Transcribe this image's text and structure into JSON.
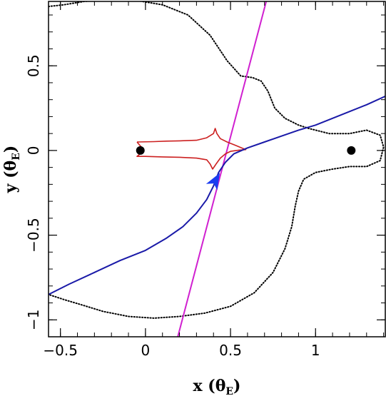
{
  "chart_data": {
    "type": "line",
    "xlim": [
      -0.57,
      1.41
    ],
    "ylim": [
      -1.1,
      0.88
    ],
    "x_ticks": [
      {
        "value": -0.5,
        "label": "−0.5"
      },
      {
        "value": 0,
        "label": "0"
      },
      {
        "value": 0.5,
        "label": "0.5"
      },
      {
        "value": 1,
        "label": "1"
      }
    ],
    "y_ticks": [
      {
        "value": -1,
        "label": "−1"
      },
      {
        "value": -0.5,
        "label": "−0.5"
      },
      {
        "value": 0,
        "label": "0"
      },
      {
        "value": 0.5,
        "label": "0.5"
      }
    ],
    "xlabel": {
      "main": "x (θ",
      "sub": "E",
      "close": ")"
    },
    "ylabel": {
      "main": "y (θ",
      "sub": "E",
      "close": ")"
    },
    "grid": false,
    "colors": {
      "critical_curve": "#000000",
      "caustic": "#cc2020",
      "source_trajectory": "#1a1aa8",
      "magenta_line": "#d020d0",
      "arrow": "#1a3cf0"
    },
    "lenses": [
      {
        "x": -0.03,
        "y": 0.0
      },
      {
        "x": 1.21,
        "y": 0.0
      }
    ],
    "critical_curve": [
      [
        -0.57,
        0.85
      ],
      [
        -0.48,
        0.86
      ],
      [
        -0.36,
        0.88
      ],
      [
        -0.2,
        0.89
      ],
      [
        -0.05,
        0.885
      ],
      [
        0.1,
        0.86
      ],
      [
        0.25,
        0.8
      ],
      [
        0.38,
        0.68
      ],
      [
        0.48,
        0.53
      ],
      [
        0.56,
        0.44
      ],
      [
        0.63,
        0.43
      ],
      [
        0.68,
        0.41
      ],
      [
        0.72,
        0.35
      ],
      [
        0.76,
        0.25
      ],
      [
        0.82,
        0.19
      ],
      [
        0.9,
        0.15
      ],
      [
        0.96,
        0.13
      ],
      [
        1.0,
        0.12
      ],
      [
        1.08,
        0.1
      ],
      [
        1.2,
        0.1
      ],
      [
        1.3,
        0.12
      ],
      [
        1.38,
        0.09
      ],
      [
        1.4,
        0.02
      ],
      [
        1.38,
        -0.06
      ],
      [
        1.3,
        -0.095
      ],
      [
        1.2,
        -0.095
      ],
      [
        1.1,
        -0.11
      ],
      [
        1.0,
        -0.13
      ],
      [
        0.93,
        -0.17
      ],
      [
        0.9,
        -0.24
      ],
      [
        0.88,
        -0.33
      ],
      [
        0.86,
        -0.45
      ],
      [
        0.82,
        -0.58
      ],
      [
        0.75,
        -0.72
      ],
      [
        0.64,
        -0.84
      ],
      [
        0.5,
        -0.92
      ],
      [
        0.35,
        -0.96
      ],
      [
        0.2,
        -0.98
      ],
      [
        0.05,
        -0.99
      ],
      [
        -0.1,
        -0.98
      ],
      [
        -0.25,
        -0.95
      ],
      [
        -0.38,
        -0.91
      ],
      [
        -0.48,
        -0.88
      ],
      [
        -0.57,
        -0.85
      ]
    ],
    "caustic": [
      [
        -0.05,
        0.05
      ],
      [
        0.05,
        0.052
      ],
      [
        0.12,
        0.055
      ],
      [
        0.2,
        0.057
      ],
      [
        0.3,
        0.06
      ],
      [
        0.36,
        0.075
      ],
      [
        0.4,
        0.1
      ],
      [
        0.41,
        0.13
      ],
      [
        0.42,
        0.1
      ],
      [
        0.44,
        0.07
      ],
      [
        0.48,
        0.05
      ],
      [
        0.53,
        0.03
      ],
      [
        0.59,
        0.005
      ],
      [
        0.55,
        0.002
      ],
      [
        0.5,
        -0.005
      ],
      [
        0.47,
        -0.02
      ],
      [
        0.44,
        -0.045
      ],
      [
        0.415,
        -0.08
      ],
      [
        0.395,
        -0.11
      ],
      [
        0.38,
        -0.08
      ],
      [
        0.36,
        -0.055
      ],
      [
        0.3,
        -0.045
      ],
      [
        0.2,
        -0.04
      ],
      [
        0.1,
        -0.038
      ],
      [
        0.0,
        -0.035
      ],
      [
        -0.05,
        -0.035
      ],
      [
        -0.02,
        -0.01
      ],
      [
        -0.015,
        0.0
      ],
      [
        -0.02,
        0.015
      ],
      [
        -0.05,
        0.05
      ]
    ],
    "source_trajectory": [
      [
        -0.57,
        -0.85
      ],
      [
        -0.45,
        -0.79
      ],
      [
        -0.3,
        -0.72
      ],
      [
        -0.15,
        -0.65
      ],
      [
        0.0,
        -0.59
      ],
      [
        0.12,
        -0.52
      ],
      [
        0.22,
        -0.45
      ],
      [
        0.3,
        -0.37
      ],
      [
        0.36,
        -0.29
      ],
      [
        0.4,
        -0.21
      ],
      [
        0.43,
        -0.13
      ],
      [
        0.47,
        -0.07
      ],
      [
        0.52,
        -0.02
      ],
      [
        0.6,
        0.015
      ],
      [
        0.7,
        0.05
      ],
      [
        0.8,
        0.085
      ],
      [
        0.9,
        0.12
      ],
      [
        1.0,
        0.15
      ],
      [
        1.1,
        0.19
      ],
      [
        1.2,
        0.23
      ],
      [
        1.3,
        0.27
      ],
      [
        1.41,
        0.32
      ]
    ],
    "magenta_line": [
      [
        0.19,
        -1.1
      ],
      [
        0.71,
        0.88
      ]
    ],
    "arrow": {
      "x": 0.41,
      "y": -0.18,
      "direction_deg": 60
    }
  }
}
